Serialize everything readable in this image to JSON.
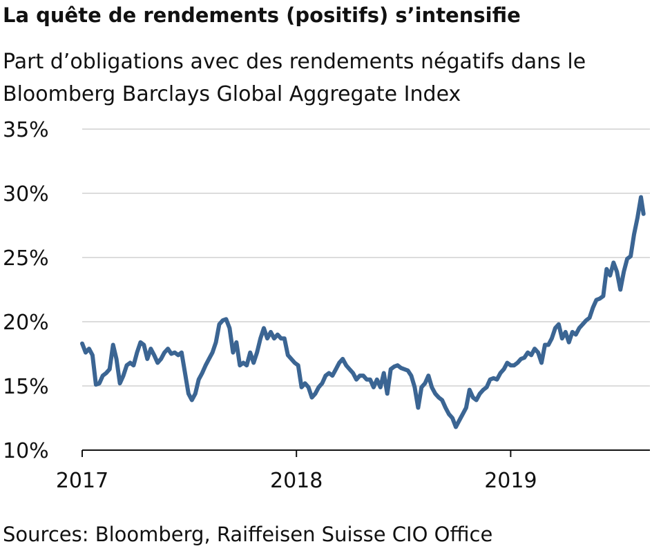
{
  "chart_data": {
    "type": "line",
    "title": "La quête de rendements (positifs) s’intensifie",
    "subtitle": [
      "Part d’obligations avec des rendements négatifs dans le",
      "Bloomberg Barclays Global Aggregate Index"
    ],
    "source": "Sources: Bloomberg, Raiffeisen Suisse CIO Office",
    "x": [
      2017,
      2017.016,
      2017.032,
      2017.048,
      2017.064,
      2017.08,
      2017.096,
      2017.112,
      2017.128,
      2017.144,
      2017.16,
      2017.176,
      2017.192,
      2017.208,
      2017.224,
      2017.24,
      2017.256,
      2017.272,
      2017.288,
      2017.304,
      2017.32,
      2017.336,
      2017.352,
      2017.368,
      2017.384,
      2017.4,
      2017.416,
      2017.432,
      2017.448,
      2017.464,
      2017.48,
      2017.496,
      2017.512,
      2017.528,
      2017.544,
      2017.56,
      2017.576,
      2017.592,
      2017.608,
      2017.624,
      2017.64,
      2017.656,
      2017.672,
      2017.688,
      2017.704,
      2017.72,
      2017.736,
      2017.752,
      2017.768,
      2017.784,
      2017.8,
      2017.816,
      2017.832,
      2017.848,
      2017.864,
      2017.88,
      2017.896,
      2017.912,
      2017.928,
      2017.944,
      2017.96,
      2017.976,
      2017.992,
      2018.008,
      2018.024,
      2018.04,
      2018.056,
      2018.072,
      2018.088,
      2018.104,
      2018.12,
      2018.136,
      2018.152,
      2018.168,
      2018.184,
      2018.2,
      2018.216,
      2018.232,
      2018.248,
      2018.264,
      2018.28,
      2018.296,
      2018.312,
      2018.328,
      2018.344,
      2018.36,
      2018.376,
      2018.392,
      2018.408,
      2018.424,
      2018.44,
      2018.456,
      2018.472,
      2018.488,
      2018.504,
      2018.52,
      2018.536,
      2018.552,
      2018.568,
      2018.584,
      2018.6,
      2018.616,
      2018.632,
      2018.648,
      2018.664,
      2018.68,
      2018.696,
      2018.712,
      2018.728,
      2018.744,
      2018.76,
      2018.776,
      2018.792,
      2018.808,
      2018.824,
      2018.84,
      2018.856,
      2018.872,
      2018.888,
      2018.904,
      2018.92,
      2018.936,
      2018.952,
      2018.968,
      2018.984,
      2019.0,
      2019.016,
      2019.032,
      2019.048,
      2019.064,
      2019.08,
      2019.096,
      2019.112,
      2019.128,
      2019.144,
      2019.16,
      2019.176,
      2019.192,
      2019.208,
      2019.224,
      2019.24,
      2019.256,
      2019.272,
      2019.288,
      2019.304,
      2019.32,
      2019.336,
      2019.352,
      2019.368,
      2019.384,
      2019.4,
      2019.416,
      2019.432,
      2019.448,
      2019.464,
      2019.48,
      2019.496,
      2019.512,
      2019.528,
      2019.544,
      2019.56,
      2019.576,
      2019.592,
      2019.608,
      2019.62
    ],
    "series": [
      {
        "color": "#3b6593",
        "values": [
          18.3,
          17.6,
          17.9,
          17.4,
          15.1,
          15.2,
          15.8,
          16.0,
          16.3,
          18.2,
          17.1,
          15.2,
          15.8,
          16.6,
          16.8,
          16.6,
          17.6,
          18.4,
          18.2,
          17.1,
          17.9,
          17.4,
          16.8,
          17.1,
          17.6,
          17.9,
          17.5,
          17.6,
          17.4,
          17.6,
          16.0,
          14.4,
          13.9,
          14.4,
          15.5,
          16.0,
          16.6,
          17.1,
          17.6,
          18.4,
          19.8,
          20.1,
          20.2,
          19.5,
          17.6,
          18.4,
          16.6,
          16.8,
          16.6,
          17.6,
          16.8,
          17.6,
          18.7,
          19.5,
          18.7,
          19.2,
          18.7,
          19.0,
          18.7,
          18.7,
          17.4,
          17.1,
          16.8,
          16.6,
          14.9,
          15.2,
          14.9,
          14.1,
          14.4,
          14.9,
          15.2,
          15.8,
          16.0,
          15.8,
          16.3,
          16.8,
          17.1,
          16.6,
          16.3,
          16.0,
          15.5,
          15.8,
          15.8,
          15.5,
          15.5,
          14.9,
          15.5,
          14.9,
          16.0,
          14.4,
          16.3,
          16.5,
          16.6,
          16.4,
          16.3,
          16.2,
          15.8,
          14.9,
          13.3,
          14.9,
          15.2,
          15.8,
          14.9,
          14.4,
          14.1,
          13.9,
          13.3,
          12.8,
          12.5,
          11.8,
          12.3,
          12.8,
          13.3,
          14.7,
          14.1,
          13.9,
          14.4,
          14.7,
          14.9,
          15.5,
          15.6,
          15.5,
          16.0,
          16.3,
          16.8,
          16.6,
          16.6,
          16.8,
          17.1,
          17.2,
          17.6,
          17.4,
          17.9,
          17.6,
          16.8,
          18.2,
          18.2,
          18.7,
          19.5,
          19.8,
          18.7,
          19.2,
          18.4,
          19.2,
          19.0,
          19.5,
          19.8,
          20.1,
          20.3,
          21.1,
          21.7,
          21.8,
          22.0,
          24.1,
          23.6,
          24.6,
          23.9,
          22.5,
          23.9,
          24.9,
          25.1,
          26.8,
          28.1,
          29.7,
          28.4
        ]
      }
    ],
    "xlim": [
      2017,
      2019.65
    ],
    "xticks": [
      2017,
      2018,
      2019
    ],
    "ylim": [
      10,
      35
    ],
    "yticks": [
      {
        "value": 10,
        "label": "10%"
      },
      {
        "value": 15,
        "label": "15%"
      },
      {
        "value": 20,
        "label": "20%"
      },
      {
        "value": 25,
        "label": "25%"
      },
      {
        "value": 30,
        "label": "30%"
      },
      {
        "value": 35,
        "label": "35%"
      }
    ],
    "grid": true
  }
}
